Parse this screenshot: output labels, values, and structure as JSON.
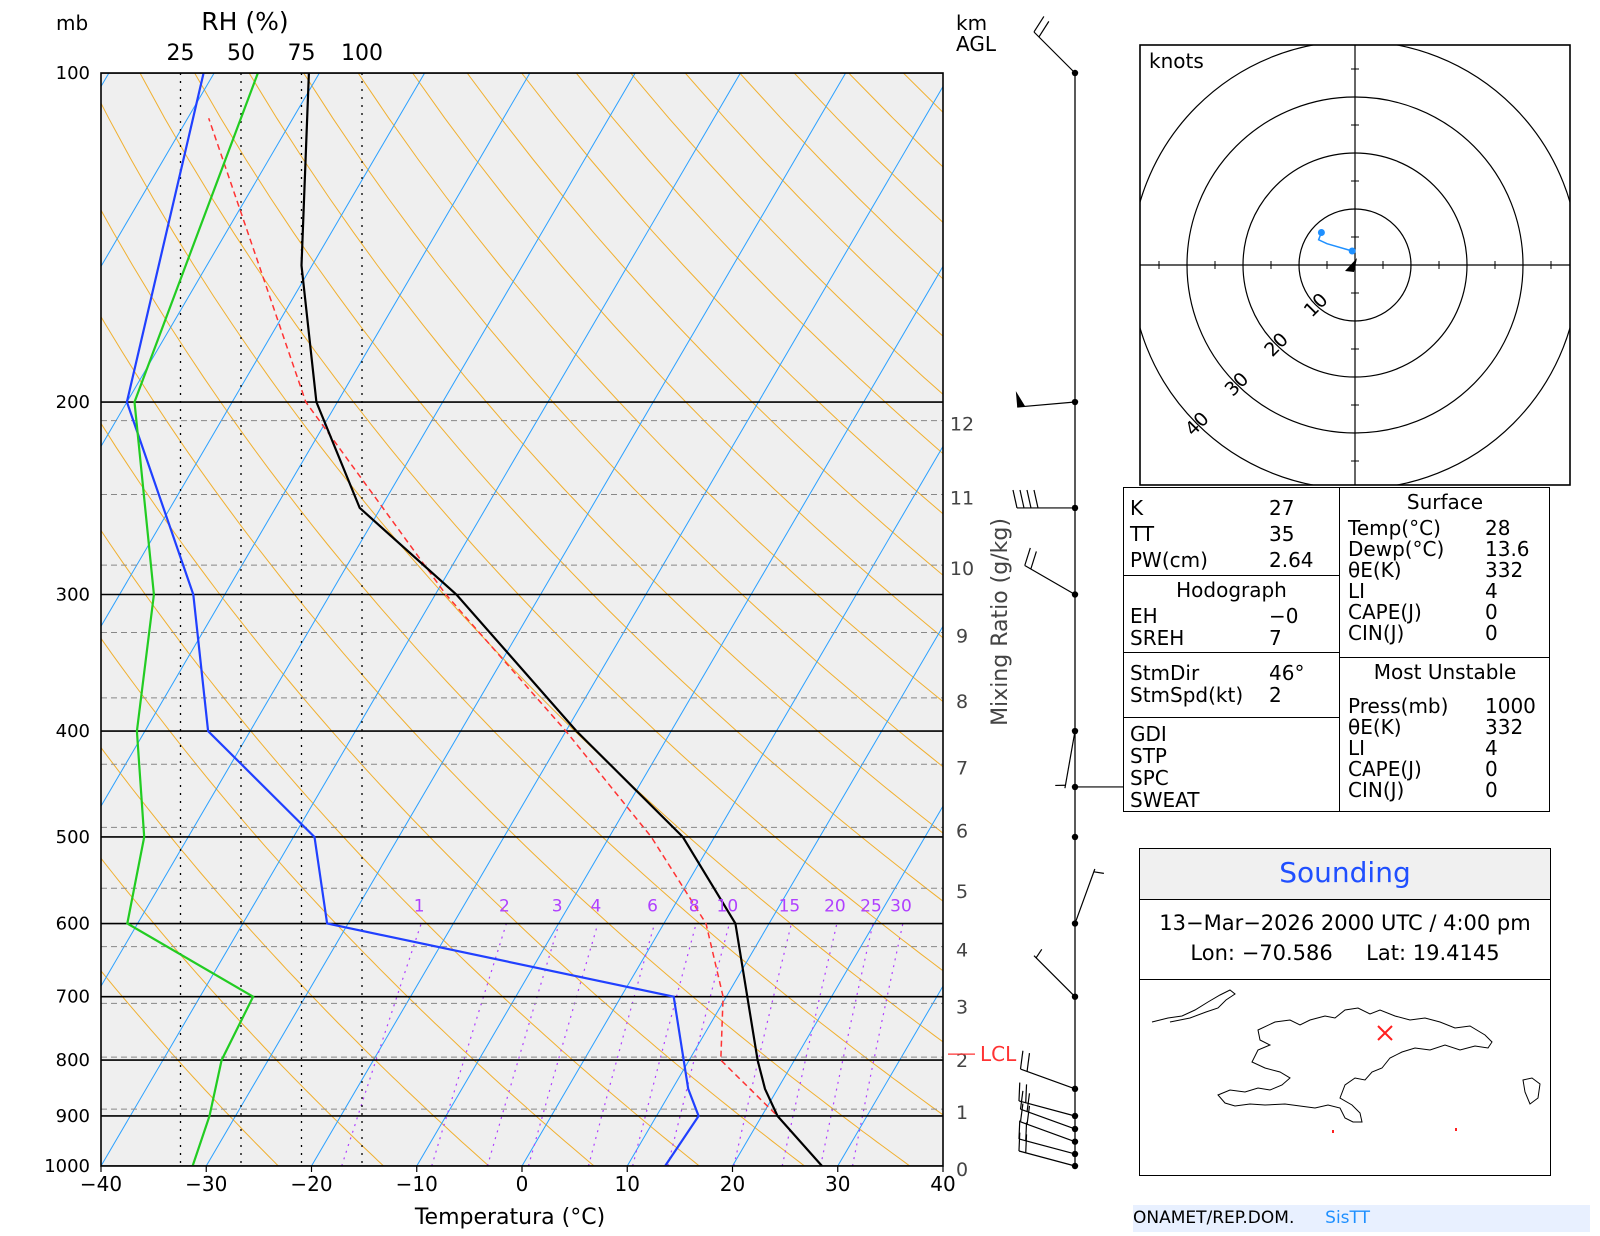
{
  "skewt": {
    "pressure_unit": "mb",
    "rh_label": "RH  (%)",
    "rh_ticks": [
      "25",
      "50",
      "75",
      "100"
    ],
    "height_unit": "km",
    "height_ref": "AGL",
    "mixing_ratio_label": "Mixing Ratio (g/kg)",
    "mixing_ratio_values": [
      "1",
      "2",
      "3",
      "4",
      "6",
      "8",
      "10",
      "15",
      "20",
      "25",
      "30"
    ],
    "height_km_labels": [
      "0",
      "1",
      "2",
      "3",
      "4",
      "5",
      "6",
      "7",
      "8",
      "9",
      "10",
      "11",
      "12"
    ],
    "lcl_label": "LCL",
    "colors": {
      "temp": "#000000",
      "dewpoint": "#2040ff",
      "rh": "#22cc22",
      "parcel": "#ff3333",
      "dry_adiabat": "#f0b030",
      "isotherm": "#2aa0ff",
      "mixing": "#b040ff",
      "background": "#efefef"
    }
  },
  "chart_data": {
    "type": "line",
    "xlabel": "Temperatura (°C)",
    "ylabel": "mb",
    "x_ticks": [
      -40,
      -30,
      -20,
      -10,
      0,
      10,
      20,
      30,
      40
    ],
    "y_ticks": [
      100,
      200,
      300,
      400,
      500,
      600,
      700,
      800,
      900,
      1000
    ],
    "xlim": [
      -40,
      40
    ],
    "ylim": [
      1000,
      100
    ],
    "y_scale": "log",
    "series": [
      {
        "name": "Temperature",
        "points": [
          [
            1000,
            28.5
          ],
          [
            900,
            21.5
          ],
          [
            850,
            18.8
          ],
          [
            800,
            16.5
          ],
          [
            700,
            12
          ],
          [
            600,
            6.8
          ],
          [
            500,
            -3
          ],
          [
            400,
            -19
          ],
          [
            300,
            -38
          ],
          [
            250,
            -52
          ],
          [
            200,
            -62
          ],
          [
            150,
            -71
          ],
          [
            100,
            -81
          ]
        ]
      },
      {
        "name": "Dewpoint",
        "points": [
          [
            1000,
            13.6
          ],
          [
            900,
            14
          ],
          [
            850,
            11.5
          ],
          [
            700,
            5
          ],
          [
            600,
            -32
          ],
          [
            500,
            -38
          ],
          [
            400,
            -54
          ],
          [
            300,
            -63
          ],
          [
            200,
            -80
          ],
          [
            100,
            -91
          ]
        ]
      },
      {
        "name": "Parcel",
        "points": [
          [
            1000,
            28.5
          ],
          [
            900,
            21.5
          ],
          [
            800,
            13
          ],
          [
            700,
            9.7
          ],
          [
            600,
            4
          ],
          [
            500,
            -6
          ],
          [
            400,
            -20
          ],
          [
            300,
            -39
          ],
          [
            200,
            -63
          ],
          [
            110,
            -88
          ]
        ]
      },
      {
        "name": "RH (%)",
        "points": [
          [
            1000,
            30
          ],
          [
            900,
            37
          ],
          [
            800,
            42
          ],
          [
            700,
            55
          ],
          [
            600,
            3
          ],
          [
            500,
            10
          ],
          [
            400,
            7
          ],
          [
            300,
            14
          ],
          [
            200,
            6
          ],
          [
            100,
            57
          ]
        ]
      }
    ],
    "wind_profile_kt": [
      {
        "pressure_mb": 1000,
        "dir_deg": 285,
        "speed_kt": 20
      },
      {
        "pressure_mb": 975,
        "dir_deg": 285,
        "speed_kt": 20
      },
      {
        "pressure_mb": 950,
        "dir_deg": 290,
        "speed_kt": 20
      },
      {
        "pressure_mb": 925,
        "dir_deg": 290,
        "speed_kt": 20
      },
      {
        "pressure_mb": 900,
        "dir_deg": 285,
        "speed_kt": 20
      },
      {
        "pressure_mb": 850,
        "dir_deg": 290,
        "speed_kt": 20
      },
      {
        "pressure_mb": 700,
        "dir_deg": 315,
        "speed_kt": 5
      },
      {
        "pressure_mb": 600,
        "dir_deg": 20,
        "speed_kt": 5
      },
      {
        "pressure_mb": 500,
        "dir_deg": 0,
        "speed_kt": 0
      },
      {
        "pressure_mb": 450,
        "dir_deg": 90,
        "speed_kt": 5
      },
      {
        "pressure_mb": 400,
        "dir_deg": 190,
        "speed_kt": 5
      },
      {
        "pressure_mb": 300,
        "dir_deg": 300,
        "speed_kt": 20
      },
      {
        "pressure_mb": 250,
        "dir_deg": 270,
        "speed_kt": 40
      },
      {
        "pressure_mb": 200,
        "dir_deg": 265,
        "speed_kt": 50
      },
      {
        "pressure_mb": 100,
        "dir_deg": 315,
        "speed_kt": 20
      }
    ],
    "hodograph": {
      "unit": "knots",
      "rings": [
        "10",
        "20",
        "30",
        "40"
      ],
      "points": [
        [
          -0.5,
          2.5
        ],
        [
          -5,
          3.8
        ],
        [
          -6.5,
          4.5
        ],
        [
          -6,
          5.8
        ]
      ]
    }
  },
  "indices": {
    "left": [
      {
        "label": "K",
        "value": "27"
      },
      {
        "label": "TT",
        "value": "35"
      },
      {
        "label": "PW(cm)",
        "value": "2.64"
      }
    ],
    "hodograph_title": "Hodograph",
    "hodograph_rows": [
      {
        "label": "EH",
        "value": "−0"
      },
      {
        "label": "SREH",
        "value": "7"
      }
    ],
    "storm_rows": [
      {
        "label": "StmDir",
        "value": "46°"
      },
      {
        "label": "StmSpd(kt)",
        "value": "2"
      }
    ],
    "other_rows": [
      "GDI",
      "STP",
      "SPC",
      "SWEAT"
    ],
    "surface_title": "Surface",
    "surface_rows": [
      {
        "label": "Temp(°C)",
        "value": "28"
      },
      {
        "label": "Dewp(°C)",
        "value": "13.6"
      },
      {
        "label": "θE(K)",
        "value": "332"
      },
      {
        "label": "LI",
        "value": "4"
      },
      {
        "label": "CAPE(J)",
        "value": "0"
      },
      {
        "label": "CIN(J)",
        "value": "0"
      }
    ],
    "mu_title": "Most Unstable",
    "mu_rows": [
      {
        "label": "Press(mb)",
        "value": "1000"
      },
      {
        "label": "θE(K)",
        "value": "332"
      },
      {
        "label": "LI",
        "value": "4"
      },
      {
        "label": "CAPE(J)",
        "value": "0"
      },
      {
        "label": "CIN(J)",
        "value": "0"
      }
    ]
  },
  "sounding": {
    "title": "Sounding",
    "datetime": "13−Mar−2026 2000 UTC / 4:00 pm",
    "lon_label": "Lon:",
    "lon": "−70.586",
    "lat_label": "Lat:",
    "lat": "19.4145"
  },
  "footer": {
    "agency": "ONAMET/REP.DOM.",
    "brand": "SisTT"
  }
}
